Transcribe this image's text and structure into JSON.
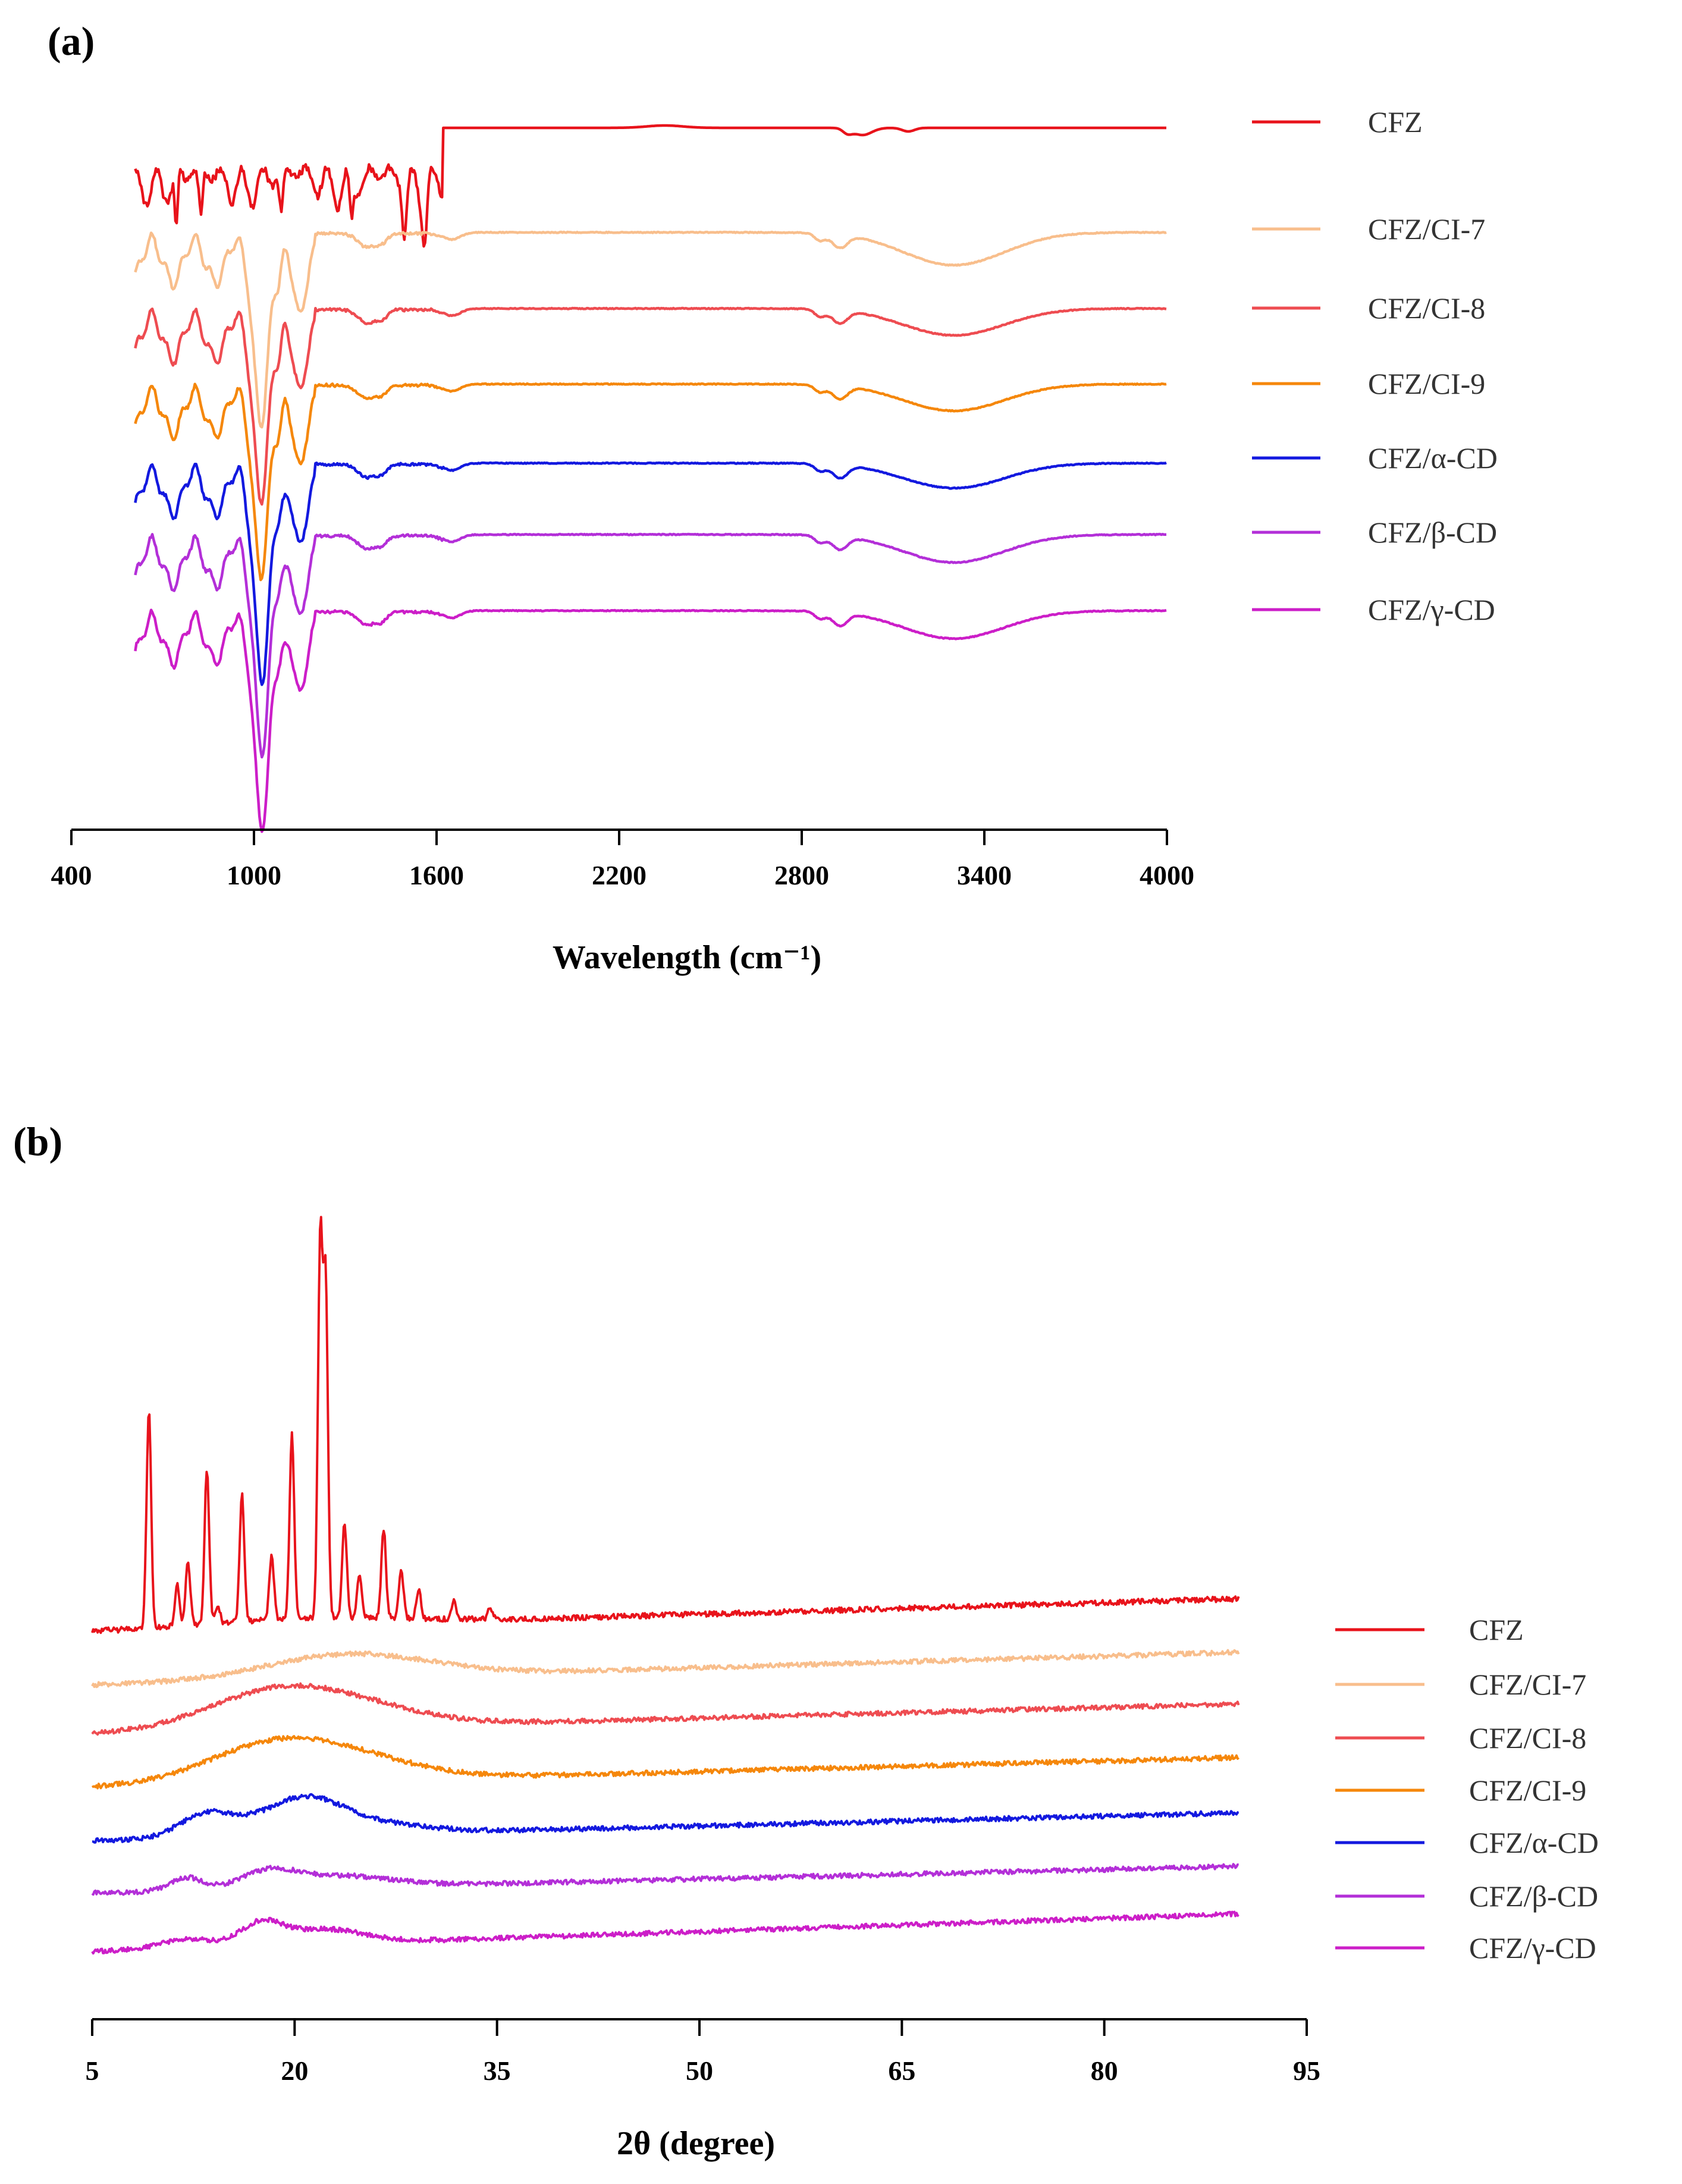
{
  "figure": {
    "panels": [
      "(a)",
      "(b)"
    ]
  },
  "chart_data": [
    {
      "type": "line",
      "panel": "(a)",
      "title": "",
      "xlabel": "Wavelength (cm⁻¹)",
      "ylabel": "",
      "xlim": [
        400,
        4000
      ],
      "xticks": [
        400,
        1000,
        1600,
        2200,
        2800,
        3400,
        4000
      ],
      "legend_position": "right",
      "series": [
        {
          "name": "CFZ",
          "color": "#e8131b",
          "baseline": 0,
          "peak_x": 3000,
          "peak_depth": 12,
          "peak_width": 30
        },
        {
          "name": "CFZ/CI-7",
          "color": "#f8be8c",
          "baseline": 1,
          "peak_x": 3300,
          "peak_depth": 55,
          "peak_width": 165
        },
        {
          "name": "CFZ/CI-8",
          "color": "#ee4c51",
          "baseline": 2,
          "peak_x": 3300,
          "peak_depth": 45,
          "peak_width": 165
        },
        {
          "name": "CFZ/CI-9",
          "color": "#f5870b",
          "baseline": 3,
          "peak_x": 3300,
          "peak_depth": 45,
          "peak_width": 165
        },
        {
          "name": "CFZ/α-CD",
          "color": "#1319df",
          "baseline": 4,
          "peak_x": 3300,
          "peak_depth": 42,
          "peak_width": 165
        },
        {
          "name": "CFZ/β-CD",
          "color": "#b32fd8",
          "baseline": 5,
          "peak_x": 3300,
          "peak_depth": 47,
          "peak_width": 165
        },
        {
          "name": "CFZ/γ-CD",
          "color": "#cc1ec8",
          "baseline": 6,
          "peak_x": 3300,
          "peak_depth": 47,
          "peak_width": 165
        }
      ]
    },
    {
      "type": "line",
      "panel": "(b)",
      "title": "",
      "xlabel": "2θ (degree)",
      "ylabel": "",
      "xlim": [
        5,
        95
      ],
      "xticks": [
        5,
        20,
        35,
        50,
        65,
        80,
        95
      ],
      "data_range": [
        5,
        90
      ],
      "legend_position": "right",
      "series": [
        {
          "name": "CFZ",
          "color": "#e8131b",
          "baseline": 0,
          "peaks": [
            [
              9.2,
              368
            ],
            [
              11.3,
              70
            ],
            [
              12.1,
              108
            ],
            [
              13.5,
              262
            ],
            [
              14.3,
              30
            ],
            [
              16.1,
              215
            ],
            [
              18.3,
              110
            ],
            [
              19.8,
              310
            ],
            [
              21.9,
              635
            ],
            [
              22.3,
              558
            ],
            [
              23.7,
              158
            ],
            [
              24.8,
              70
            ],
            [
              26.6,
              150
            ],
            [
              27.9,
              80
            ],
            [
              29.2,
              48
            ],
            [
              31.8,
              30
            ],
            [
              34.5,
              18
            ]
          ]
        },
        {
          "name": "CFZ/CI-7",
          "color": "#f8be8c",
          "baseline": 1,
          "humps": [
            [
              24,
              40,
              6
            ]
          ]
        },
        {
          "name": "CFZ/CI-8",
          "color": "#ee4c51",
          "baseline": 2,
          "humps": [
            [
              18.5,
              60,
              5
            ],
            [
              25,
              25,
              5
            ]
          ]
        },
        {
          "name": "CFZ/CI-9",
          "color": "#f5870b",
          "baseline": 3,
          "humps": [
            [
              18.5,
              62,
              5
            ],
            [
              25,
              25,
              5
            ]
          ]
        },
        {
          "name": "CFZ/α-CD",
          "color": "#1319df",
          "baseline": 4,
          "humps": [
            [
              13.5,
              40,
              2
            ],
            [
              20.5,
              60,
              3
            ],
            [
              26,
              15,
              4
            ]
          ]
        },
        {
          "name": "CFZ/β-CD",
          "color": "#b32fd8",
          "baseline": 5,
          "humps": [
            [
              12,
              22,
              1.2
            ],
            [
              18,
              25,
              2
            ],
            [
              23,
              20,
              4
            ]
          ]
        },
        {
          "name": "CFZ/γ-CD",
          "color": "#cc1ec8",
          "baseline": 6,
          "humps": [
            [
              12,
              15,
              2
            ],
            [
              17.5,
              35,
              1.5
            ],
            [
              22,
              25,
              3
            ]
          ]
        }
      ]
    }
  ]
}
